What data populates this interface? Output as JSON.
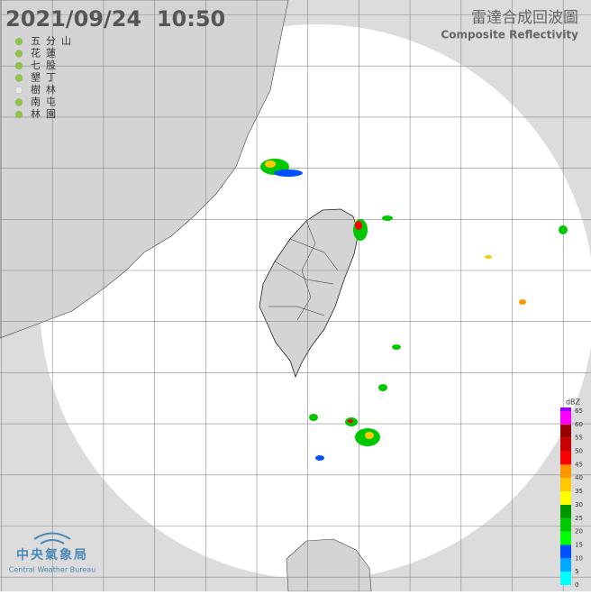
{
  "header": {
    "timestamp": "2021/09/24  10:50",
    "title": "雷達合成回波圖",
    "subtitle": "Composite Reflectivity"
  },
  "stations": [
    {
      "name": "五分山",
      "active": true
    },
    {
      "name": "花蓮",
      "active": true
    },
    {
      "name": "七股",
      "active": true
    },
    {
      "name": "墾丁",
      "active": true
    },
    {
      "name": "樹林",
      "active": false
    },
    {
      "name": "南屯",
      "active": true
    },
    {
      "name": "林園",
      "active": true
    }
  ],
  "legend": {
    "unit": "dBZ",
    "ticks": [
      0,
      5,
      10,
      15,
      20,
      25,
      30,
      35,
      40,
      45,
      50,
      55,
      60,
      65
    ],
    "colors": [
      "#00ffff",
      "#00a8ff",
      "#0050ff",
      "#00ff00",
      "#00c800",
      "#009600",
      "#ffff00",
      "#ffc800",
      "#ff9600",
      "#ff0000",
      "#c80000",
      "#960000",
      "#ff00ff",
      "#9600ff"
    ]
  },
  "logo": {
    "name": "中央氣象局",
    "english": "Central Weather Bureau"
  }
}
